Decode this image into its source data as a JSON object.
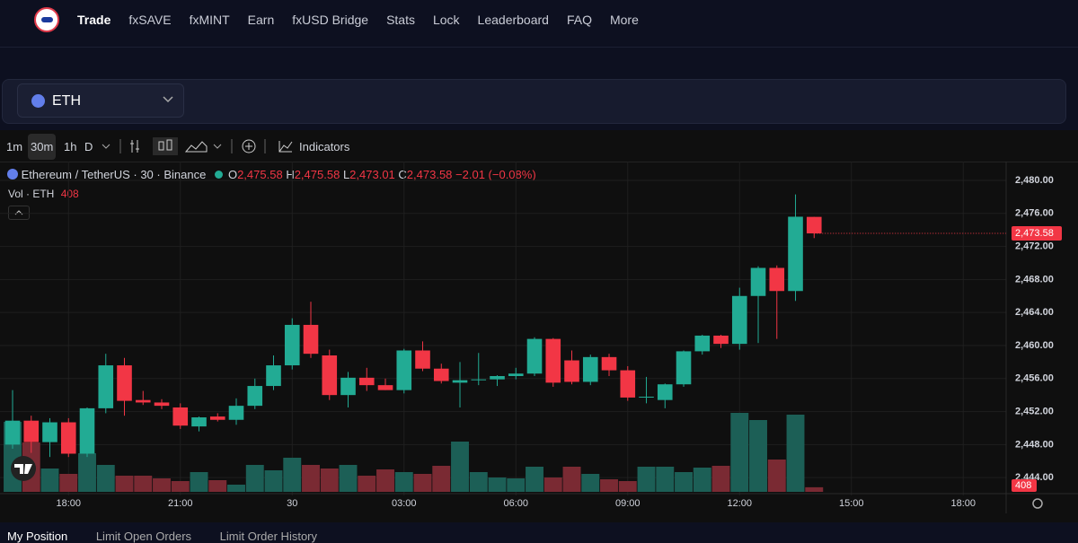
{
  "nav": [
    "Trade",
    "fxSAVE",
    "fxMINT",
    "Earn",
    "fxUSD Bridge",
    "Stats",
    "Lock",
    "Leaderboard",
    "FAQ",
    "More"
  ],
  "asset": "ETH",
  "toolbar": {
    "intervals": [
      "1m",
      "30m",
      "1h",
      "D"
    ],
    "indicators": "Indicators"
  },
  "legend": {
    "symbol": "Ethereum / TetherUS · 30 · Binance",
    "open_key": "O",
    "open": "2,475.58",
    "high_key": "H",
    "high": "2,475.58",
    "low_key": "L",
    "low": "2,473.01",
    "close_key": "C",
    "close": "2,473.58",
    "change": "−2.01 (−0.08%)",
    "volume": "Vol · ETH"
  },
  "tabs": [
    "My Position",
    "Limit Open Orders",
    "Limit Order History"
  ],
  "chart_data": {
    "type": "candlestick",
    "x": [
      0,
      1,
      2,
      3,
      4,
      5,
      6,
      7,
      8,
      9,
      10,
      11,
      12,
      13,
      14,
      15,
      16,
      17,
      18,
      19,
      20,
      21,
      22,
      23,
      24,
      25,
      26,
      27,
      28,
      29,
      30,
      31,
      32,
      33,
      34,
      35,
      36,
      37,
      38,
      39,
      40,
      41,
      42,
      43
    ],
    "open": [
      2448.0,
      2450.9,
      2448.3,
      2450.7,
      2446.9,
      2452.4,
      2457.6,
      2453.4,
      2453.1,
      2452.5,
      2450.2,
      2451.4,
      2451.0,
      2452.7,
      2455.1,
      2457.6,
      2462.5,
      2458.8,
      2454.0,
      2456.1,
      2455.2,
      2454.6,
      2459.4,
      2457.2,
      2455.5,
      2455.8,
      2455.9,
      2456.3,
      2456.6,
      2460.8,
      2458.2,
      2455.6,
      2458.6,
      2457.0,
      2453.7,
      2453.4,
      2455.3,
      2459.3,
      2461.2,
      2460.2,
      2466.0,
      2469.4,
      2466.6,
      2475.58
    ],
    "high": [
      2454.6,
      2451.5,
      2451.2,
      2451.2,
      2452.5,
      2459.0,
      2458.5,
      2454.5,
      2453.5,
      2453.0,
      2451.4,
      2451.8,
      2453.6,
      2456.0,
      2458.8,
      2463.3,
      2465.3,
      2459.5,
      2456.8,
      2457.3,
      2456.0,
      2459.6,
      2460.5,
      2457.8,
      2458.0,
      2459.1,
      2456.4,
      2457.3,
      2461.0,
      2460.9,
      2459.4,
      2458.9,
      2459.0,
      2457.5,
      2456.2,
      2455.4,
      2459.4,
      2461.3,
      2461.3,
      2467.0,
      2469.6,
      2469.7,
      2478.3,
      2475.58
    ],
    "low": [
      2447.5,
      2447.0,
      2446.5,
      2446.5,
      2446.5,
      2451.8,
      2451.5,
      2452.8,
      2452.3,
      2449.9,
      2449.6,
      2450.8,
      2450.4,
      2452.3,
      2454.6,
      2457.1,
      2458.5,
      2453.4,
      2452.5,
      2454.5,
      2454.6,
      2454.2,
      2456.9,
      2455.4,
      2452.5,
      2455.2,
      2455.1,
      2455.9,
      2456.3,
      2455.0,
      2455.3,
      2455.2,
      2456.3,
      2453.3,
      2453.0,
      2452.4,
      2455.0,
      2458.9,
      2459.7,
      2459.5,
      2460.3,
      2460.8,
      2465.4,
      2473.01
    ],
    "close": [
      2450.9,
      2448.3,
      2450.7,
      2446.9,
      2452.4,
      2457.6,
      2453.3,
      2453.1,
      2452.7,
      2450.3,
      2451.3,
      2451.0,
      2452.7,
      2455.1,
      2457.6,
      2462.5,
      2459.0,
      2454.0,
      2456.1,
      2455.2,
      2454.6,
      2459.4,
      2457.2,
      2455.7,
      2455.8,
      2455.9,
      2456.3,
      2456.6,
      2460.8,
      2455.5,
      2455.6,
      2458.6,
      2457.0,
      2453.7,
      2453.8,
      2455.3,
      2459.3,
      2461.2,
      2460.2,
      2466.0,
      2469.4,
      2466.6,
      2475.6,
      2473.58
    ],
    "volume": [
      6240,
      4400,
      2080,
      1600,
      3440,
      2400,
      1440,
      1440,
      1200,
      960,
      1760,
      1040,
      640,
      2400,
      1920,
      3040,
      2400,
      2080,
      2400,
      1440,
      2000,
      1760,
      1600,
      2320,
      4480,
      1760,
      1280,
      1200,
      2240,
      1280,
      2240,
      1600,
      1120,
      960,
      2240,
      2240,
      1760,
      2160,
      2320,
      7040,
      6400,
      2880,
      6880,
      408
    ],
    "up_color": "#22ab94",
    "down_color": "#f23645",
    "up_volume_color": "#1c5f56",
    "down_volume_color": "#7a2a33",
    "xlim": [
      -0.675,
      53.3
    ],
    "xticks": [
      {
        "value": 3,
        "label": "18:00"
      },
      {
        "value": 9,
        "label": "21:00"
      },
      {
        "value": 15,
        "label": "30"
      },
      {
        "value": 21,
        "label": "03:00"
      },
      {
        "value": 27,
        "label": "06:00"
      },
      {
        "value": 33,
        "label": "09:00"
      },
      {
        "value": 39,
        "label": "12:00"
      },
      {
        "value": 45,
        "label": "15:00"
      },
      {
        "value": 51,
        "label": "18:00"
      }
    ],
    "ylim": [
      2439.67,
      2482.28
    ],
    "yticks": [
      {
        "value": 2444,
        "label": "2,444.00"
      },
      {
        "value": 2448,
        "label": "2,448.00"
      },
      {
        "value": 2452,
        "label": "2,452.00"
      },
      {
        "value": 2456,
        "label": "2,456.00"
      },
      {
        "value": 2460,
        "label": "2,460.00"
      },
      {
        "value": 2464,
        "label": "2,464.00"
      },
      {
        "value": 2468,
        "label": "2,468.00"
      },
      {
        "value": 2472,
        "label": "2,472.00"
      },
      {
        "value": 2476,
        "label": "2,476.00"
      },
      {
        "value": 2480,
        "label": "2,480.00"
      }
    ],
    "last_price": {
      "value": 2473.58,
      "label": "2,473.58"
    },
    "grid": true
  }
}
